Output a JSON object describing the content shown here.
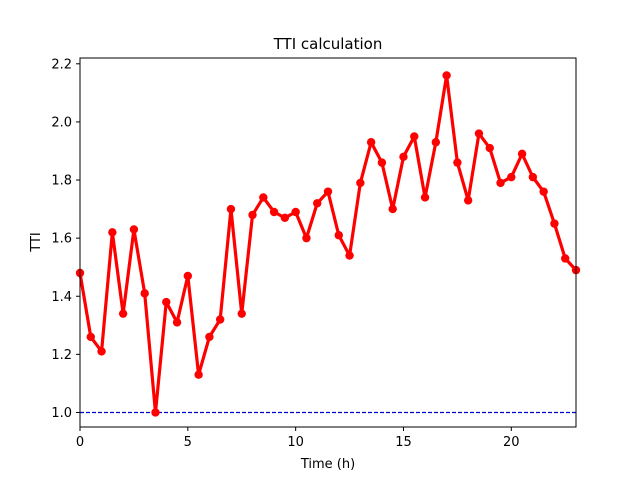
{
  "chart_data": {
    "type": "line",
    "title": "TTI calculation",
    "xlabel": "Time (h)",
    "ylabel": "TTI",
    "xlim": [
      0,
      23
    ],
    "ylim": [
      0.95,
      2.22
    ],
    "x_ticks": [
      0,
      5,
      10,
      15,
      20
    ],
    "x_tick_labels": [
      "0",
      "5",
      "10",
      "15",
      "20"
    ],
    "y_ticks": [
      1.0,
      1.2,
      1.4,
      1.6,
      1.8,
      2.0,
      2.2
    ],
    "y_tick_labels": [
      "1.0",
      "1.2",
      "1.4",
      "1.6",
      "1.8",
      "2.0",
      "2.2"
    ],
    "grid": false,
    "series": [
      {
        "color": "#ff0000",
        "marker": "circle",
        "x": [
          0,
          0.5,
          1,
          1.5,
          2,
          2.5,
          3,
          3.5,
          4,
          4.5,
          5,
          5.5,
          6,
          6.5,
          7,
          7.5,
          8,
          8.5,
          9,
          9.5,
          10,
          10.5,
          11,
          11.5,
          12,
          12.5,
          13,
          13.5,
          14,
          14.5,
          15,
          15.5,
          16,
          16.5,
          17,
          17.5,
          18,
          18.5,
          19,
          19.5,
          20,
          20.5,
          21,
          21.5,
          22,
          22.5,
          23
        ],
        "values": [
          1.48,
          1.26,
          1.21,
          1.62,
          1.34,
          1.63,
          1.41,
          1.0,
          1.38,
          1.31,
          1.47,
          1.13,
          1.26,
          1.32,
          1.7,
          1.34,
          1.68,
          1.74,
          1.69,
          1.67,
          1.69,
          1.6,
          1.72,
          1.76,
          1.61,
          1.54,
          1.79,
          1.93,
          1.86,
          1.7,
          1.88,
          1.95,
          1.74,
          1.93,
          2.16,
          1.86,
          1.73,
          1.96,
          1.91,
          1.79,
          1.81,
          1.89,
          1.81,
          1.76,
          1.65,
          1.53,
          1.49
        ]
      }
    ],
    "reference_lines": [
      {
        "axis": "y",
        "value": 1.0,
        "color": "#0000cc",
        "style": "dashed"
      }
    ]
  }
}
